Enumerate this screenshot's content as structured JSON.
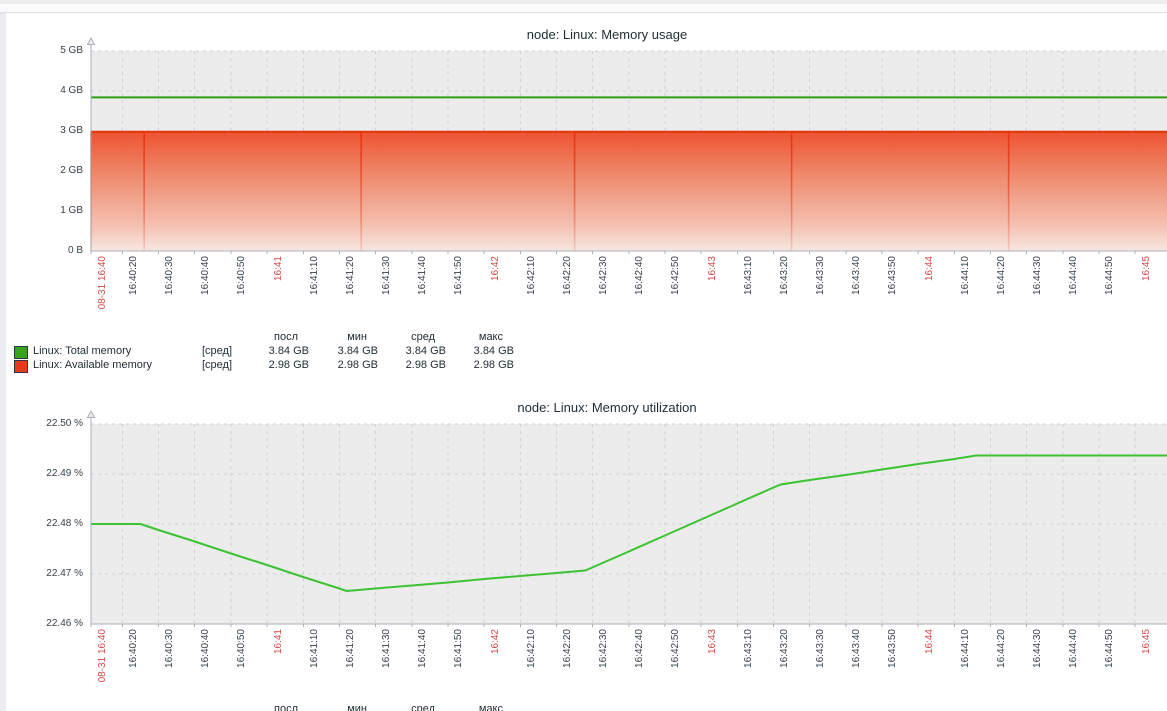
{
  "page": {
    "colors": {
      "page_bg": "#e9edf0",
      "panel_bg": "#ffffff",
      "top_strip": "#ececec",
      "top_strip_lower": "#fafafa",
      "top_divider": "#dfe3e6",
      "plot_bg": "#ececec",
      "grid": "#ccd2d6",
      "axis": "#a9b2b8",
      "tick_text": "#37424a",
      "tick_text_red": "#d64747",
      "title_text": "#1f2c33",
      "legend_text": "#1f2c33",
      "swatch_border": "#2b3a42"
    }
  },
  "chart_data": [
    {
      "type": "area",
      "title": "node: Linux: Memory usage",
      "grid": true,
      "legend_position": "bottom",
      "ylim": [
        0,
        5
      ],
      "y_unit": "GB",
      "y_ticks": [
        {
          "label": "5 GB",
          "value": 5
        },
        {
          "label": "4 GB",
          "value": 4
        },
        {
          "label": "3 GB",
          "value": 3
        },
        {
          "label": "2 GB",
          "value": 2
        },
        {
          "label": "1 GB",
          "value": 1
        },
        {
          "label": "0 B",
          "value": 0
        }
      ],
      "x_ticks": [
        {
          "label": "08-31 16:40",
          "red": true
        },
        {
          "label": "16:40:20"
        },
        {
          "label": "16:40:30"
        },
        {
          "label": "16:40:40"
        },
        {
          "label": "16:40:50"
        },
        {
          "label": "16:41",
          "red": true
        },
        {
          "label": "16:41:10"
        },
        {
          "label": "16:41:20"
        },
        {
          "label": "16:41:30"
        },
        {
          "label": "16:41:40"
        },
        {
          "label": "16:41:50"
        },
        {
          "label": "16:42",
          "red": true
        },
        {
          "label": "16:42:10"
        },
        {
          "label": "16:42:20"
        },
        {
          "label": "16:42:30"
        },
        {
          "label": "16:42:40"
        },
        {
          "label": "16:42:50"
        },
        {
          "label": "16:43",
          "red": true
        },
        {
          "label": "16:43:10"
        },
        {
          "label": "16:43:20"
        },
        {
          "label": "16:43:30"
        },
        {
          "label": "16:43:40"
        },
        {
          "label": "16:43:50"
        },
        {
          "label": "16:44",
          "red": true
        },
        {
          "label": "16:44:10"
        },
        {
          "label": "16:44:20"
        },
        {
          "label": "16:44:30"
        },
        {
          "label": "16:44:40"
        },
        {
          "label": "16:44:50"
        },
        {
          "label": "16:45",
          "red": true
        }
      ],
      "series": [
        {
          "name": "Linux: Total memory",
          "legend_func": "[сред]",
          "draw": "line",
          "color": "#2f9e12",
          "unit": "GB",
          "points": [
            [
              11,
              3.84
            ],
            [
              310,
              3.84
            ]
          ],
          "stats": [
            "3.84 GB",
            "3.84 GB",
            "3.84 GB",
            "3.84 GB"
          ]
        },
        {
          "name": "Linux: Available memory",
          "legend_func": "[сред]",
          "draw": "gradient_area",
          "color": "#e5330f",
          "swatch_color": "#e8391f",
          "fill_gradient": [
            "#ed5330",
            "#ef8e72",
            "#f4c0b0",
            "#f6e7e1"
          ],
          "unit": "GB",
          "points": [
            [
              11,
              2.98
            ],
            [
              310,
              2.98
            ]
          ],
          "stats": [
            "2.98 GB",
            "2.98 GB",
            "2.98 GB",
            "2.98 GB"
          ]
        }
      ],
      "stripe_secs": [
        11,
        26,
        86,
        145,
        205,
        265
      ],
      "legend": {
        "headers": [
          "посл",
          "мин",
          "сред",
          "макс"
        ],
        "rows": [
          {
            "swatch": "#3aa31c",
            "name": "Linux: Total memory",
            "func": "[сред]",
            "values": [
              "3.84 GB",
              "3.84 GB",
              "3.84 GB",
              "3.84 GB"
            ]
          },
          {
            "swatch": "#e8391f",
            "name": "Linux: Available memory",
            "func": "[сред]",
            "values": [
              "2.98 GB",
              "2.98 GB",
              "2.98 GB",
              "2.98 GB"
            ]
          }
        ]
      }
    },
    {
      "type": "line",
      "title": "node: Linux: Memory utilization",
      "grid": true,
      "legend_position": "bottom",
      "ylim": [
        22.46,
        22.5
      ],
      "y_unit": "%",
      "y_ticks": [
        {
          "label": "22.50 %",
          "value": 22.5
        },
        {
          "label": "22.49 %",
          "value": 22.49
        },
        {
          "label": "22.48 %",
          "value": 22.48
        },
        {
          "label": "22.47 %",
          "value": 22.47
        },
        {
          "label": "22.46 %",
          "value": 22.46
        }
      ],
      "x_ticks": [
        {
          "label": "08-31 16:40",
          "red": true
        },
        {
          "label": "16:40:20"
        },
        {
          "label": "16:40:30"
        },
        {
          "label": "16:40:40"
        },
        {
          "label": "16:40:50"
        },
        {
          "label": "16:41",
          "red": true
        },
        {
          "label": "16:41:10"
        },
        {
          "label": "16:41:20"
        },
        {
          "label": "16:41:30"
        },
        {
          "label": "16:41:40"
        },
        {
          "label": "16:41:50"
        },
        {
          "label": "16:42",
          "red": true
        },
        {
          "label": "16:42:10"
        },
        {
          "label": "16:42:20"
        },
        {
          "label": "16:42:30"
        },
        {
          "label": "16:42:40"
        },
        {
          "label": "16:42:50"
        },
        {
          "label": "16:43",
          "red": true
        },
        {
          "label": "16:43:10"
        },
        {
          "label": "16:43:20"
        },
        {
          "label": "16:43:30"
        },
        {
          "label": "16:43:40"
        },
        {
          "label": "16:43:50"
        },
        {
          "label": "16:44",
          "red": true
        },
        {
          "label": "16:44:10"
        },
        {
          "label": "16:44:20"
        },
        {
          "label": "16:44:30"
        },
        {
          "label": "16:44:40"
        },
        {
          "label": "16:44:50"
        },
        {
          "label": "16:45",
          "red": true
        }
      ],
      "series": [
        {
          "draw": "line",
          "color": "#3cc332",
          "unit": "%",
          "points": [
            [
              11,
              22.48
            ],
            [
              25,
              22.48
            ],
            [
              30,
              22.4788
            ],
            [
              40,
              22.4765
            ],
            [
              50,
              22.4741
            ],
            [
              60,
              22.4718
            ],
            [
              70,
              22.4694
            ],
            [
              80,
              22.4671
            ],
            [
              82,
              22.4666
            ],
            [
              90,
              22.4671
            ],
            [
              100,
              22.4677
            ],
            [
              110,
              22.4683
            ],
            [
              120,
              22.469
            ],
            [
              130,
              22.4696
            ],
            [
              140,
              22.4702
            ],
            [
              148,
              22.4707
            ],
            [
              160,
              22.4745
            ],
            [
              170,
              22.4777
            ],
            [
              180,
              22.4809
            ],
            [
              190,
              22.4841
            ],
            [
              200,
              22.4873
            ],
            [
              202,
              22.4879
            ],
            [
              210,
              22.4888
            ],
            [
              220,
              22.4898
            ],
            [
              230,
              22.4909
            ],
            [
              240,
              22.492
            ],
            [
              250,
              22.493
            ],
            [
              256,
              22.4937
            ],
            [
              270,
              22.4937
            ],
            [
              290,
              22.4937
            ],
            [
              310,
              22.4937
            ]
          ]
        }
      ],
      "legend": {
        "headers": [
          "посл",
          "мин",
          "сред",
          "макс"
        ],
        "rows": []
      }
    }
  ]
}
